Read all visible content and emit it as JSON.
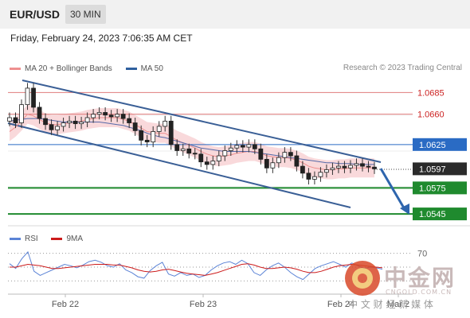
{
  "header": {
    "symbol": "EUR/USD",
    "timeframe": "30 MIN"
  },
  "datetime": "Friday, February 24, 2023 7:06:35 AM CET",
  "legend": {
    "items": [
      {
        "label": "MA 20 + Bollinger Bands",
        "color": "#ee8f8f"
      },
      {
        "label": "MA 50",
        "color": "#2f5f9e"
      }
    ]
  },
  "credit": "Research © 2023 Trading Central",
  "rsi_legend": {
    "items": [
      {
        "label": "RSI",
        "color": "#5b83d6"
      },
      {
        "label": "9MA",
        "color": "#cc1b1b"
      }
    ]
  },
  "chart_data": [
    {
      "type": "candlestick",
      "ylim": [
        1.0535,
        1.07
      ],
      "current_price": "1.0597",
      "levels": [
        {
          "value": 1.0685,
          "label": "1.0685",
          "style": "resistance",
          "color": "#cc2222"
        },
        {
          "value": 1.066,
          "label": "1.0660",
          "style": "resistance",
          "color": "#cc2222"
        },
        {
          "value": 1.0625,
          "label": "1.0625",
          "style": "pivot",
          "color": "#2a6bc4"
        },
        {
          "value": 1.0575,
          "label": "1.0575",
          "style": "support",
          "color": "#1f8a2e"
        },
        {
          "value": 1.0545,
          "label": "1.0545",
          "style": "support",
          "color": "#1f8a2e"
        }
      ],
      "x_ticks": [
        "Feb 22",
        "Feb 23",
        "Feb 24",
        "Mar 2"
      ],
      "series": [
        {
          "values": [
            1.0656,
            1.065,
            1.0671,
            1.069,
            1.0668,
            1.0655,
            1.0648,
            1.0642,
            1.0646,
            1.065,
            1.0652,
            1.0649,
            1.0651,
            1.0656,
            1.066,
            1.0662,
            1.0659,
            1.0657,
            1.066,
            1.0655,
            1.065,
            1.0641,
            1.063,
            1.0628,
            1.064,
            1.0646,
            1.0652,
            1.0625,
            1.0618,
            1.062,
            1.0615,
            1.0614,
            1.0605,
            1.0602,
            1.0606,
            1.0612,
            1.0618,
            1.0621,
            1.0624,
            1.0622,
            1.0625,
            1.062,
            1.0608,
            1.0598,
            1.0604,
            1.061,
            1.0616,
            1.0612,
            1.06,
            1.0592,
            1.0585,
            1.0588,
            1.0593,
            1.0596,
            1.0598,
            1.06,
            1.0598,
            1.0601,
            1.0603,
            1.06,
            1.0599,
            1.0597
          ]
        },
        {
          "name": "MA 20",
          "values": [
            1.064,
            1.0645,
            1.0652,
            1.066,
            1.0658,
            1.0654,
            1.065,
            1.0648,
            1.0648,
            1.0649,
            1.065,
            1.0651,
            1.0652,
            1.0654,
            1.0655,
            1.0656,
            1.0656,
            1.0656,
            1.0656,
            1.0654,
            1.0652,
            1.0648,
            1.0644,
            1.064,
            1.0639,
            1.0638,
            1.0638,
            1.0634,
            1.063,
            1.0627,
            1.0624,
            1.0621,
            1.0617,
            1.0614,
            1.0612,
            1.0611,
            1.0612,
            1.0613,
            1.0615,
            1.0616,
            1.0617,
            1.0617,
            1.0615,
            1.0612,
            1.0611,
            1.061,
            1.061,
            1.0609,
            1.0607,
            1.0604,
            1.06,
            1.0598,
            1.0597,
            1.0596,
            1.0596,
            1.0597,
            1.0597,
            1.0598,
            1.0598,
            1.0598,
            1.0598,
            1.0598
          ]
        },
        {
          "name": "MA 50",
          "values": [
            1.0652,
            1.0653,
            1.0654,
            1.0655,
            1.0655,
            1.0655,
            1.0654,
            1.0653,
            1.0652,
            1.0651,
            1.0651,
            1.0651,
            1.0651,
            1.0651,
            1.0651,
            1.0651,
            1.065,
            1.0649,
            1.0648,
            1.0647,
            1.0645,
            1.0643,
            1.0641,
            1.0638,
            1.0636,
            1.0634,
            1.0633,
            1.0631,
            1.0629,
            1.0627,
            1.0625,
            1.0623,
            1.0621,
            1.062,
            1.0619,
            1.0618,
            1.0617,
            1.0617,
            1.0617,
            1.0617,
            1.0617,
            1.0616,
            1.0615,
            1.0614,
            1.0613,
            1.0612,
            1.0611,
            1.061,
            1.0609,
            1.0608,
            1.0607,
            1.0606,
            1.0605,
            1.0604,
            1.0604,
            1.0603,
            1.0603,
            1.0603,
            1.0602,
            1.0602,
            1.0602,
            1.0602
          ]
        }
      ]
    },
    {
      "type": "line",
      "title": "RSI",
      "y_ticks": [
        "70"
      ],
      "ylim": [
        20,
        80
      ],
      "series": [
        {
          "name": "RSI",
          "values": [
            55,
            48,
            62,
            72,
            44,
            38,
            42,
            46,
            50,
            54,
            52,
            49,
            53,
            58,
            60,
            57,
            52,
            50,
            55,
            46,
            42,
            36,
            34,
            45,
            52,
            57,
            40,
            37,
            42,
            38,
            40,
            35,
            38,
            46,
            52,
            56,
            58,
            54,
            60,
            55,
            42,
            38,
            46,
            52,
            56,
            50,
            42,
            36,
            32,
            40,
            48,
            52,
            55,
            58,
            54,
            50,
            56,
            52,
            48,
            50,
            49,
            47
          ]
        },
        {
          "name": "9MA",
          "values": [
            50,
            50,
            52,
            54,
            53,
            52,
            50,
            48,
            48,
            49,
            50,
            51,
            52,
            53,
            54,
            54,
            54,
            53,
            53,
            51,
            49,
            46,
            44,
            43,
            44,
            46,
            47,
            45,
            43,
            41,
            40,
            39,
            38,
            40,
            42,
            45,
            48,
            51,
            54,
            55,
            53,
            50,
            48,
            48,
            49,
            50,
            49,
            47,
            44,
            42,
            42,
            44,
            47,
            50,
            52,
            53,
            54,
            53,
            52,
            51,
            50,
            49
          ]
        }
      ]
    }
  ],
  "watermark": {
    "name": "中金网",
    "url": "CNGOLD.COM.CN",
    "subtitle": "中 文 财 经 新 媒 体"
  }
}
